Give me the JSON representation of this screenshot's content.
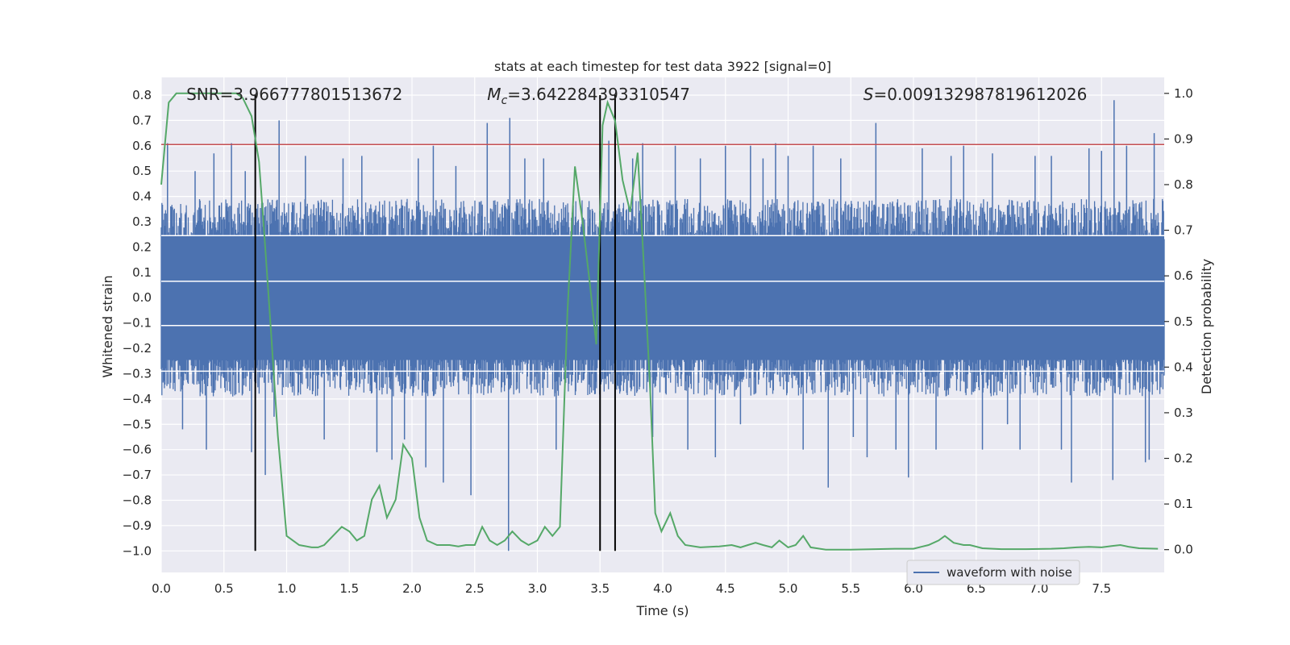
{
  "chart_data": {
    "type": "line",
    "title": "stats at each timestep for test data 3922 [signal=0]",
    "xlabel": "Time (s)",
    "ylabel_left": "Whitened strain",
    "ylabel_right": "Detection probability",
    "xlim": [
      0,
      8.0
    ],
    "ylim_left": [
      -1.085,
      0.87
    ],
    "ylim_right": [
      -0.05,
      1.035
    ],
    "x_ticks": [
      0.0,
      0.5,
      1.0,
      1.5,
      2.0,
      2.5,
      3.0,
      3.5,
      4.0,
      4.5,
      5.0,
      5.5,
      6.0,
      6.5,
      7.0,
      7.5
    ],
    "x_tick_labels": [
      "0.0",
      "0.5",
      "1.0",
      "1.5",
      "2.0",
      "2.5",
      "3.0",
      "3.5",
      "4.0",
      "4.5",
      "5.0",
      "5.5",
      "6.0",
      "6.5",
      "7.0",
      "7.5"
    ],
    "y_ticks_left": [
      0.8,
      0.7,
      0.6,
      0.5,
      0.4,
      0.3,
      0.2,
      0.1,
      0.0,
      -0.1,
      -0.2,
      -0.3,
      -0.4,
      -0.5,
      -0.6,
      -0.7,
      -0.8,
      -0.9,
      -1.0
    ],
    "y_tick_labels_left": [
      "0.8",
      "0.7",
      "0.6",
      "0.5",
      "0.4",
      "0.3",
      "0.2",
      "0.1",
      "0.0",
      "−0.1",
      "−0.2",
      "−0.3",
      "−0.4",
      "−0.5",
      "−0.6",
      "−0.7",
      "−0.8",
      "−0.9",
      "−1.0"
    ],
    "y_ticks_right": [
      1.0,
      0.9,
      0.8,
      0.7,
      0.6,
      0.5,
      0.4,
      0.3,
      0.2,
      0.1,
      0.0
    ],
    "y_tick_labels_right": [
      "1.0",
      "0.9",
      "0.8",
      "0.7",
      "0.6",
      "0.5",
      "0.4",
      "0.3",
      "0.2",
      "0.1",
      "0.0"
    ],
    "series": [
      {
        "name": "waveform with noise",
        "axis": "left",
        "color": "#4c72b0",
        "noise_band": [
          -0.3,
          0.3
        ],
        "spikes": [
          {
            "x": 0.05,
            "y": 0.61
          },
          {
            "x": 0.17,
            "y": -0.52
          },
          {
            "x": 0.27,
            "y": 0.5
          },
          {
            "x": 0.36,
            "y": -0.6
          },
          {
            "x": 0.42,
            "y": 0.57
          },
          {
            "x": 0.56,
            "y": 0.61
          },
          {
            "x": 0.67,
            "y": 0.5
          },
          {
            "x": 0.72,
            "y": -0.61
          },
          {
            "x": 0.83,
            "y": -0.7
          },
          {
            "x": 0.9,
            "y": -0.47
          },
          {
            "x": 0.94,
            "y": 0.7
          },
          {
            "x": 1.15,
            "y": 0.56
          },
          {
            "x": 1.3,
            "y": -0.56
          },
          {
            "x": 1.45,
            "y": 0.55
          },
          {
            "x": 1.6,
            "y": 0.56
          },
          {
            "x": 1.72,
            "y": -0.61
          },
          {
            "x": 1.84,
            "y": -0.64
          },
          {
            "x": 1.94,
            "y": -0.56
          },
          {
            "x": 2.05,
            "y": 0.55
          },
          {
            "x": 2.11,
            "y": -0.67
          },
          {
            "x": 2.17,
            "y": 0.6
          },
          {
            "x": 2.25,
            "y": -0.73
          },
          {
            "x": 2.35,
            "y": 0.52
          },
          {
            "x": 2.47,
            "y": -0.78
          },
          {
            "x": 2.6,
            "y": 0.69
          },
          {
            "x": 2.78,
            "y": 0.71
          },
          {
            "x": 2.77,
            "y": -1.0
          },
          {
            "x": 2.9,
            "y": 0.55
          },
          {
            "x": 3.05,
            "y": 0.55
          },
          {
            "x": 3.15,
            "y": -0.6
          },
          {
            "x": 3.5,
            "y": -0.5
          },
          {
            "x": 3.57,
            "y": 0.62
          },
          {
            "x": 3.76,
            "y": 0.55
          },
          {
            "x": 3.84,
            "y": 0.61
          },
          {
            "x": 3.92,
            "y": -0.55
          },
          {
            "x": 4.1,
            "y": 0.6
          },
          {
            "x": 4.2,
            "y": -0.6
          },
          {
            "x": 4.3,
            "y": 0.55
          },
          {
            "x": 4.42,
            "y": -0.63
          },
          {
            "x": 4.5,
            "y": 0.6
          },
          {
            "x": 4.62,
            "y": -0.5
          },
          {
            "x": 4.7,
            "y": 0.6
          },
          {
            "x": 4.8,
            "y": 0.55
          },
          {
            "x": 4.9,
            "y": 0.61
          },
          {
            "x": 5.0,
            "y": 0.56
          },
          {
            "x": 5.12,
            "y": -0.6
          },
          {
            "x": 5.2,
            "y": 0.6
          },
          {
            "x": 5.32,
            "y": -0.75
          },
          {
            "x": 5.42,
            "y": 0.55
          },
          {
            "x": 5.52,
            "y": -0.55
          },
          {
            "x": 5.63,
            "y": -0.63
          },
          {
            "x": 5.7,
            "y": 0.69
          },
          {
            "x": 5.86,
            "y": -0.6
          },
          {
            "x": 5.96,
            "y": -0.71
          },
          {
            "x": 6.07,
            "y": 0.59
          },
          {
            "x": 6.18,
            "y": -0.6
          },
          {
            "x": 6.3,
            "y": 0.56
          },
          {
            "x": 6.4,
            "y": 0.6
          },
          {
            "x": 6.55,
            "y": -0.6
          },
          {
            "x": 6.63,
            "y": 0.57
          },
          {
            "x": 6.75,
            "y": -0.5
          },
          {
            "x": 6.85,
            "y": -0.6
          },
          {
            "x": 6.97,
            "y": 0.56
          },
          {
            "x": 7.1,
            "y": 0.56
          },
          {
            "x": 7.18,
            "y": -0.6
          },
          {
            "x": 7.26,
            "y": -0.73
          },
          {
            "x": 7.4,
            "y": 0.59
          },
          {
            "x": 7.5,
            "y": 0.58
          },
          {
            "x": 7.59,
            "y": -0.72
          },
          {
            "x": 7.6,
            "y": 0.78
          },
          {
            "x": 7.7,
            "y": 0.6
          },
          {
            "x": 7.85,
            "y": -0.65
          },
          {
            "x": 7.88,
            "y": -0.64
          },
          {
            "x": 7.92,
            "y": 0.65
          }
        ]
      },
      {
        "name": "detection probability",
        "axis": "right",
        "color": "#55a868",
        "x": [
          0.0,
          0.06,
          0.12,
          0.2,
          0.3,
          0.4,
          0.5,
          0.6,
          0.65,
          0.72,
          0.78,
          0.82,
          0.87,
          0.93,
          1.0,
          1.1,
          1.2,
          1.25,
          1.3,
          1.37,
          1.44,
          1.5,
          1.56,
          1.62,
          1.68,
          1.74,
          1.8,
          1.87,
          1.93,
          2.0,
          2.06,
          2.12,
          2.2,
          2.3,
          2.37,
          2.43,
          2.5,
          2.56,
          2.62,
          2.68,
          2.74,
          2.8,
          2.87,
          2.93,
          3.0,
          3.06,
          3.12,
          3.18,
          3.24,
          3.3,
          3.36,
          3.42,
          3.47,
          3.52,
          3.56,
          3.62,
          3.68,
          3.74,
          3.8,
          3.85,
          3.9,
          3.94,
          3.99,
          4.06,
          4.12,
          4.18,
          4.3,
          4.45,
          4.55,
          4.62,
          4.68,
          4.74,
          4.8,
          4.87,
          4.93,
          5.0,
          5.06,
          5.12,
          5.18,
          5.3,
          5.5,
          5.7,
          5.85,
          6.0,
          6.12,
          6.2,
          6.25,
          6.32,
          6.4,
          6.45,
          6.55,
          6.7,
          6.9,
          7.1,
          7.2,
          7.3,
          7.4,
          7.5,
          7.58,
          7.65,
          7.72,
          7.8,
          7.95
        ],
        "values": [
          0.8,
          0.98,
          1.0,
          1.0,
          1.0,
          1.0,
          1.0,
          1.0,
          0.99,
          0.95,
          0.85,
          0.7,
          0.5,
          0.25,
          0.03,
          0.01,
          0.005,
          0.005,
          0.01,
          0.03,
          0.05,
          0.04,
          0.02,
          0.03,
          0.11,
          0.14,
          0.07,
          0.11,
          0.23,
          0.2,
          0.07,
          0.02,
          0.01,
          0.01,
          0.007,
          0.01,
          0.01,
          0.05,
          0.02,
          0.01,
          0.02,
          0.04,
          0.02,
          0.01,
          0.02,
          0.05,
          0.03,
          0.05,
          0.52,
          0.84,
          0.72,
          0.58,
          0.45,
          0.93,
          0.98,
          0.94,
          0.81,
          0.74,
          0.87,
          0.62,
          0.35,
          0.08,
          0.04,
          0.08,
          0.03,
          0.01,
          0.005,
          0.007,
          0.01,
          0.005,
          0.01,
          0.015,
          0.01,
          0.005,
          0.02,
          0.005,
          0.01,
          0.03,
          0.005,
          0.0,
          0.0,
          0.001,
          0.002,
          0.002,
          0.01,
          0.02,
          0.03,
          0.015,
          0.01,
          0.01,
          0.003,
          0.001,
          0.001,
          0.002,
          0.003,
          0.005,
          0.006,
          0.005,
          0.008,
          0.01,
          0.006,
          0.003,
          0.002
        ]
      }
    ],
    "threshold": {
      "axis": "left",
      "y": 0.605,
      "color": "#c44e52"
    },
    "vlines": [
      0.75,
      3.5,
      3.62
    ],
    "white_hlines": [
      0.245,
      0.065,
      -0.11,
      -0.29
    ],
    "annotations": [
      {
        "text": "SNR=3.966777801513672",
        "x": 0.2
      },
      {
        "prefix": "M",
        "sub": "c",
        "text": "=3.642284393310547",
        "x": 2.6
      },
      {
        "prefix": "S",
        "text": "=0.009132987819612026",
        "x": 5.6
      }
    ],
    "legend": {
      "labels": [
        "waveform with noise"
      ],
      "location": "lower-right"
    }
  }
}
